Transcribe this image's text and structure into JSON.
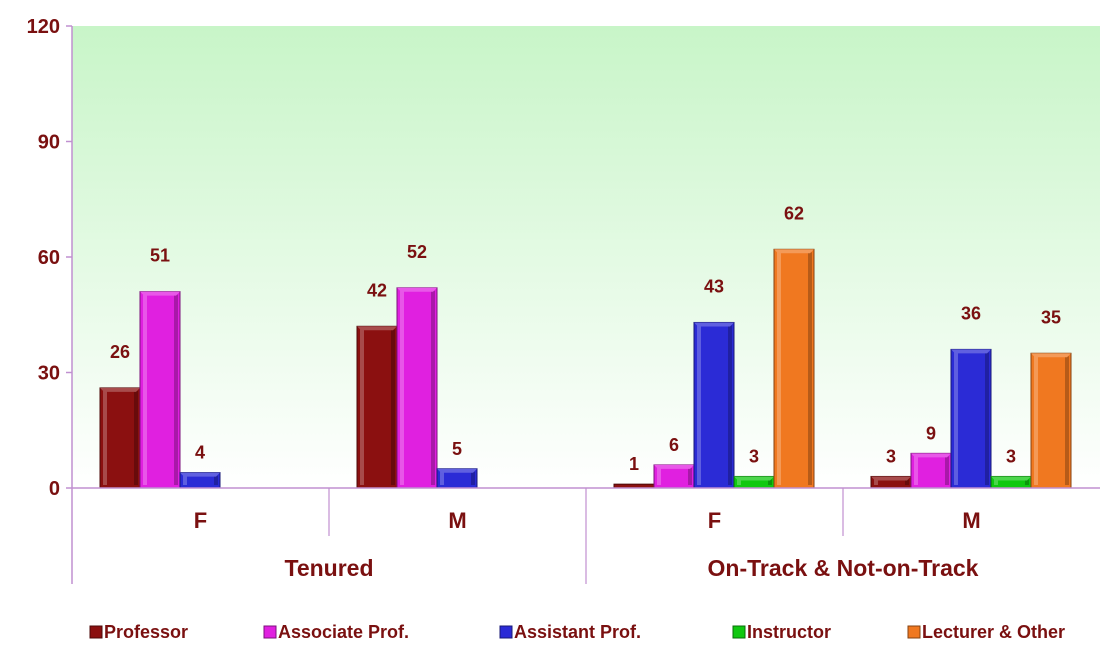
{
  "chart_data": {
    "type": "bar",
    "groups": [
      "Tenured",
      "On-Track & Not-on-Track"
    ],
    "categories": [
      "F",
      "M",
      "F",
      "M"
    ],
    "category_group": [
      0,
      0,
      1,
      1
    ],
    "series": [
      {
        "name": "Professor",
        "color": "#8b1010",
        "values": [
          26,
          42,
          1,
          3
        ]
      },
      {
        "name": "Associate Prof.",
        "color": "#e020e0",
        "values": [
          51,
          52,
          6,
          9
        ]
      },
      {
        "name": "Assistant Prof.",
        "color": "#2b2bd6",
        "values": [
          4,
          5,
          43,
          36
        ]
      },
      {
        "name": "Instructor",
        "color": "#10c810",
        "values": [
          null,
          null,
          3,
          3
        ]
      },
      {
        "name": "Lecturer & Other",
        "color": "#f07820",
        "values": [
          null,
          null,
          62,
          35
        ]
      }
    ],
    "ylim": [
      0,
      120
    ],
    "yticks": [
      0,
      30,
      60,
      90,
      120
    ],
    "legend_position": "bottom",
    "background": "green gradient",
    "text_color": "#7a1010"
  }
}
